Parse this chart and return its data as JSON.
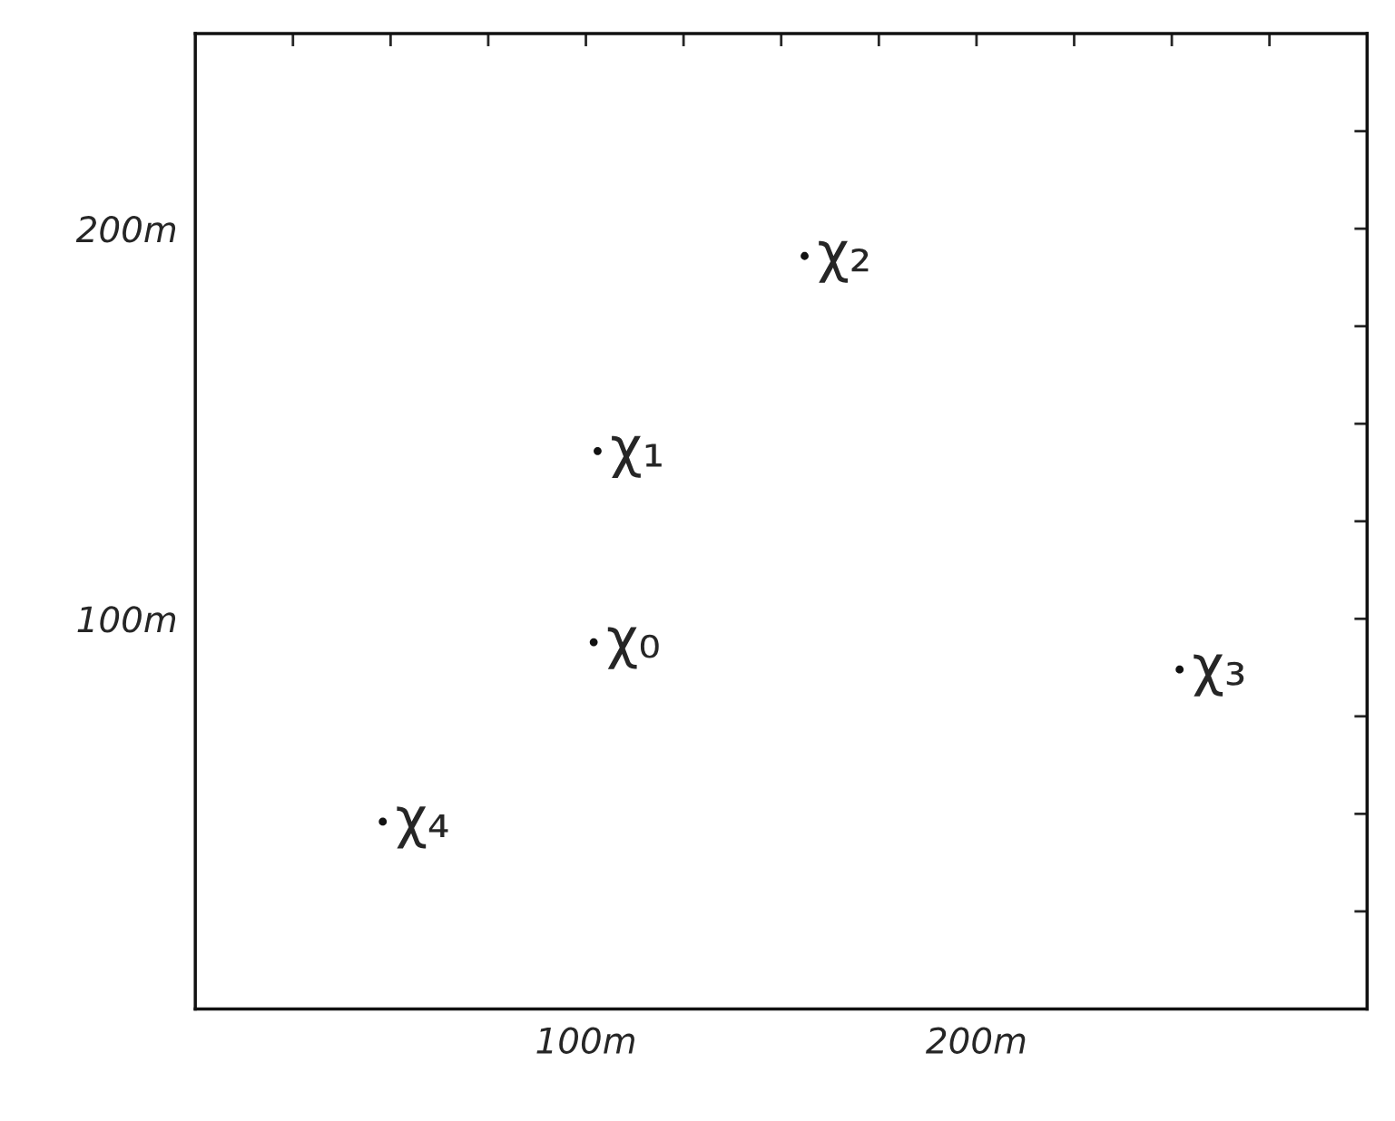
{
  "chart_data": {
    "type": "scatter",
    "x": [
      102,
      103,
      156,
      252,
      48
    ],
    "values": [
      94,
      143,
      193,
      87,
      48
    ],
    "color": "#111111",
    "marker": "circle",
    "xlim": [
      0,
      300
    ],
    "ylim": [
      0,
      250
    ],
    "xticks": [
      {
        "value": 25,
        "label": null
      },
      {
        "value": 50,
        "label": null
      },
      {
        "value": 75,
        "label": null
      },
      {
        "value": 100,
        "label": "100m"
      },
      {
        "value": 125,
        "label": null
      },
      {
        "value": 150,
        "label": null
      },
      {
        "value": 175,
        "label": null
      },
      {
        "value": 200,
        "label": "200m"
      },
      {
        "value": 225,
        "label": null
      },
      {
        "value": 250,
        "label": null
      },
      {
        "value": 275,
        "label": null
      }
    ],
    "yticks": [
      {
        "value": 25,
        "label": null
      },
      {
        "value": 50,
        "label": null
      },
      {
        "value": 75,
        "label": null
      },
      {
        "value": 100,
        "label": "100m"
      },
      {
        "value": 125,
        "label": null
      },
      {
        "value": 150,
        "label": null
      },
      {
        "value": 175,
        "label": null
      },
      {
        "value": 200,
        "label": "200m"
      },
      {
        "value": 225,
        "label": null
      }
    ],
    "annotations": [
      {
        "text": "χ₀",
        "x": 102,
        "y": 94
      },
      {
        "text": "χ₁",
        "x": 103,
        "y": 143
      },
      {
        "text": "χ₂",
        "x": 156,
        "y": 193
      },
      {
        "text": "χ₃",
        "x": 252,
        "y": 87
      },
      {
        "text": "χ₄",
        "x": 48,
        "y": 48
      }
    ]
  }
}
